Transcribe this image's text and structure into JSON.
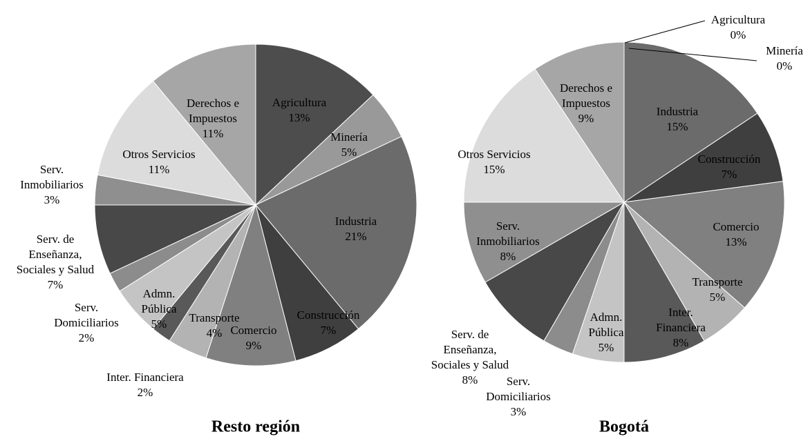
{
  "chart_data": [
    {
      "type": "pie",
      "title": "Resto región",
      "categories": [
        "Agricultura",
        "Minería",
        "Industria",
        "Construcción",
        "Comercio",
        "Transporte",
        "Inter. Financiera",
        "Admn.\nPública",
        "Serv.\nDomiciliarios",
        "Serv. de\nEnseñanza,\nSociales y Salud",
        "Serv.\nInmobiliarios",
        "Otros Servicios",
        "Derechos e\nImpuestos"
      ],
      "values": [
        13,
        5,
        21,
        7,
        9,
        4,
        2,
        5,
        2,
        7,
        3,
        11,
        11
      ],
      "value_labels": [
        "13%",
        "5%",
        "21%",
        "7%",
        "9%",
        "4%",
        "2%",
        "5%",
        "2%",
        "7%",
        "3%",
        "11%",
        "11%"
      ],
      "colors": [
        "#4d4d4d",
        "#999999",
        "#6b6b6b",
        "#3f3f3f",
        "#808080",
        "#b3b3b3",
        "#595959",
        "#c4c4c4",
        "#8c8c8c",
        "#484848",
        "#8f8f8f",
        "#dcdcdc",
        "#a6a6a6"
      ]
    },
    {
      "type": "pie",
      "title": "Bogotá",
      "categories": [
        "Agricultura",
        "Minería",
        "Industria",
        "Construcción",
        "Comercio",
        "Transporte",
        "Inter.\nFinanciera",
        "Admn.\nPública",
        "Serv.\nDomiciliarios",
        "Serv. de\nEnseñanza,\nSociales y Salud",
        "Serv.\nInmobiliarios",
        "Otros Servicios",
        "Derechos e\nImpuestos"
      ],
      "values": [
        0,
        0,
        15,
        7,
        13,
        5,
        8,
        5,
        3,
        8,
        8,
        15,
        9
      ],
      "value_labels": [
        "0%",
        "0%",
        "15%",
        "7%",
        "13%",
        "5%",
        "8%",
        "5%",
        "3%",
        "8%",
        "8%",
        "15%",
        "9%"
      ],
      "colors": [
        "#bbbbbb",
        "#999999",
        "#6b6b6b",
        "#3f3f3f",
        "#808080",
        "#b3b3b3",
        "#595959",
        "#c4c4c4",
        "#8c8c8c",
        "#484848",
        "#8f8f8f",
        "#dcdcdc",
        "#a6a6a6"
      ]
    }
  ]
}
